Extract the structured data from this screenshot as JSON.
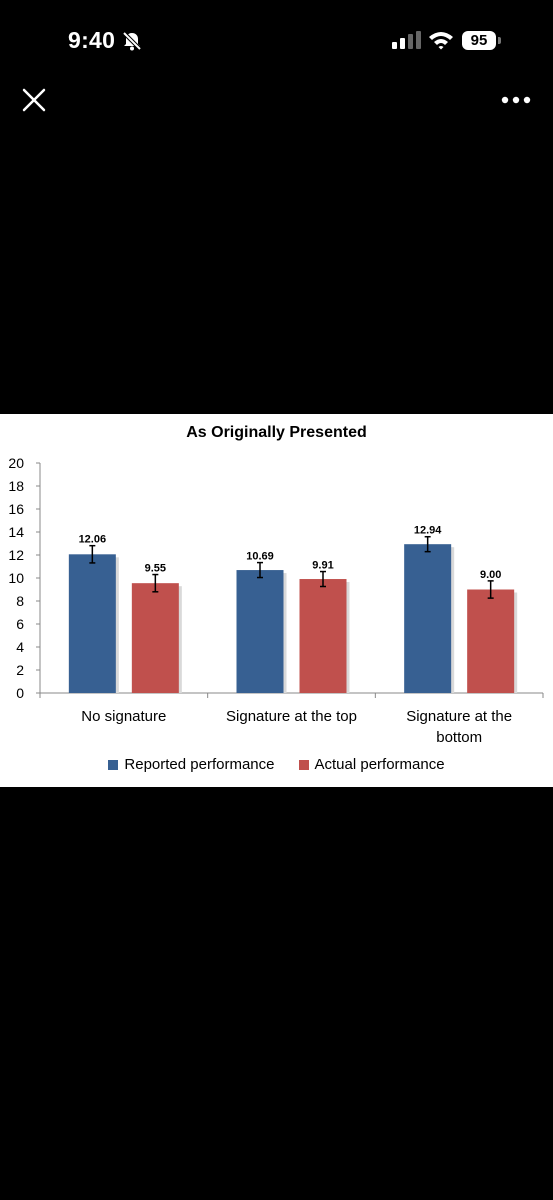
{
  "status_bar": {
    "time": "9:40",
    "battery": "95",
    "icons": [
      "bell-muted-icon",
      "cellular-signal-icon",
      "wifi-icon",
      "battery-icon"
    ]
  },
  "toolbar": {
    "close_icon": "close-icon",
    "more_icon": "more-horizontal-icon"
  },
  "colors": {
    "background": "#000000",
    "panel": "#ffffff",
    "reported": "#376092",
    "actual": "#c0504d"
  },
  "chart_data": {
    "type": "bar",
    "title": "As Originally Presented",
    "categories": [
      "No signature",
      "Signature at the top",
      "Signature at the bottom"
    ],
    "series": [
      {
        "name": "Reported performance",
        "values": [
          12.06,
          10.69,
          12.94
        ],
        "data_labels": [
          "12.06",
          "10.69",
          "12.94"
        ],
        "color": "#376092"
      },
      {
        "name": "Actual performance",
        "values": [
          9.55,
          9.91,
          9.0
        ],
        "data_labels": [
          "9.55",
          "9.91",
          "9.00"
        ],
        "color": "#c0504d"
      }
    ],
    "error_bars": [
      [
        0.75,
        0.65,
        0.65
      ],
      [
        0.75,
        0.65,
        0.75
      ]
    ],
    "ylim": [
      0,
      20
    ],
    "yticks": [
      "0",
      "2",
      "4",
      "6",
      "8",
      "10",
      "12",
      "14",
      "16",
      "18",
      "20"
    ],
    "xlabel": "",
    "ylabel": "",
    "grid": false,
    "legend": "bottom"
  }
}
